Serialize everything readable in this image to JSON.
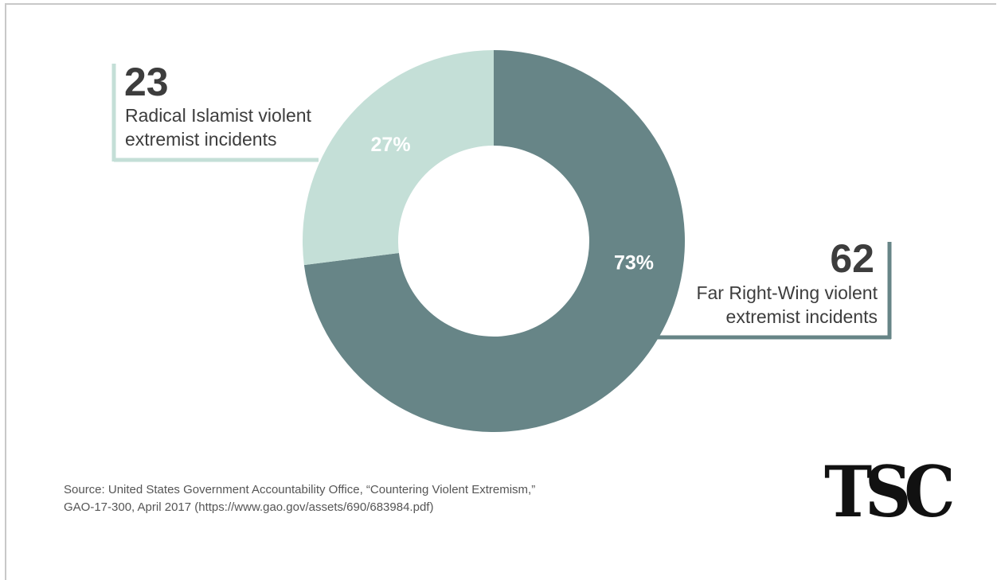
{
  "chart_data": {
    "type": "pie",
    "donut": true,
    "slices": [
      {
        "label_lines": [
          "Far Right-Wing violent",
          "extremist incidents"
        ],
        "count": "62",
        "percent_label": "73%",
        "value": 73,
        "color": "#678587"
      },
      {
        "label_lines": [
          "Radical Islamist violent",
          "extremist incidents"
        ],
        "count": "23",
        "percent_label": "27%",
        "value": 27,
        "color": "#c4dfd7"
      }
    ]
  },
  "source": {
    "line1": "Source: United States Government Accountability Office, “Countering Violent Extremism,”",
    "line2": "GAO-17-300, April 2017 (https://www.gao.gov/assets/690/683984.pdf)"
  },
  "logo": {
    "text": "TSC"
  }
}
